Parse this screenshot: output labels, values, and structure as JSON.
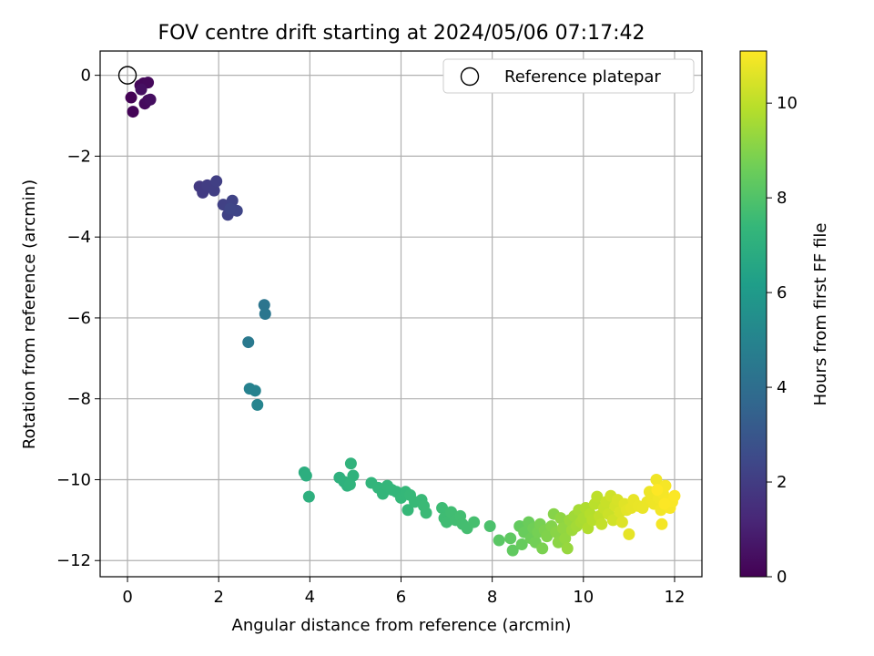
{
  "chart_data": {
    "type": "scatter",
    "title": "FOV centre drift starting at 2024/05/06 07:17:42",
    "xlabel": "Angular distance from reference (arcmin)",
    "ylabel": "Rotation from reference (arcmin)",
    "xlim": [
      -0.6,
      12.6
    ],
    "ylim": [
      -12.4,
      0.6
    ],
    "x_ticks": [
      0,
      2,
      4,
      6,
      8,
      10,
      12
    ],
    "y_ticks": [
      0,
      -2,
      -4,
      -6,
      -8,
      -10,
      -12
    ],
    "grid": true,
    "legend": {
      "position": "top-right",
      "entries": [
        "Reference platepar"
      ]
    },
    "reference_point": {
      "x": 0,
      "y": 0
    },
    "colorbar": {
      "label": "Hours from first FF file",
      "range": [
        0,
        11.1
      ],
      "ticks": [
        0,
        2,
        4,
        6,
        8,
        10
      ],
      "colormap": [
        "#440154",
        "#482878",
        "#3e4989",
        "#31688e",
        "#26828e",
        "#1f9e89",
        "#35b779",
        "#6ece58",
        "#b5de2b",
        "#fde725"
      ]
    },
    "points": [
      [
        0.08,
        -0.55,
        0.05
      ],
      [
        0.12,
        -0.9,
        0.1
      ],
      [
        0.28,
        -0.25,
        0.15
      ],
      [
        0.35,
        -0.2,
        0.2
      ],
      [
        0.45,
        -0.18,
        0.25
      ],
      [
        0.38,
        -0.7,
        0.3
      ],
      [
        0.45,
        -0.62,
        0.35
      ],
      [
        0.5,
        -0.6,
        0.4
      ],
      [
        0.3,
        -0.35,
        0.45
      ],
      [
        1.58,
        -2.75,
        1.9
      ],
      [
        1.65,
        -2.9,
        1.95
      ],
      [
        1.75,
        -2.72,
        2.0
      ],
      [
        1.9,
        -2.85,
        2.05
      ],
      [
        1.95,
        -2.62,
        2.1
      ],
      [
        2.1,
        -3.2,
        2.15
      ],
      [
        2.2,
        -3.45,
        2.2
      ],
      [
        2.3,
        -3.1,
        2.25
      ],
      [
        2.4,
        -3.35,
        2.3
      ],
      [
        2.25,
        -3.3,
        2.35
      ],
      [
        3.0,
        -5.68,
        4.3
      ],
      [
        3.02,
        -5.9,
        4.35
      ],
      [
        2.65,
        -6.6,
        4.5
      ],
      [
        2.68,
        -7.75,
        4.9
      ],
      [
        2.8,
        -7.8,
        4.95
      ],
      [
        2.85,
        -8.15,
        5.0
      ],
      [
        3.88,
        -9.82,
        6.9
      ],
      [
        3.92,
        -9.9,
        6.95
      ],
      [
        3.98,
        -10.42,
        7.0
      ],
      [
        4.65,
        -9.95,
        7.05
      ],
      [
        4.75,
        -10.05,
        7.1
      ],
      [
        4.82,
        -10.15,
        7.1
      ],
      [
        4.9,
        -9.6,
        7.15
      ],
      [
        4.95,
        -9.9,
        7.15
      ],
      [
        4.88,
        -10.12,
        7.2
      ],
      [
        5.35,
        -10.08,
        7.25
      ],
      [
        5.5,
        -10.2,
        7.28
      ],
      [
        5.6,
        -10.35,
        7.3
      ],
      [
        5.7,
        -10.15,
        7.32
      ],
      [
        5.8,
        -10.25,
        7.34
      ],
      [
        5.9,
        -10.3,
        7.36
      ],
      [
        6.0,
        -10.45,
        7.38
      ],
      [
        6.1,
        -10.3,
        7.4
      ],
      [
        6.15,
        -10.75,
        7.42
      ],
      [
        6.2,
        -10.38,
        7.44
      ],
      [
        6.3,
        -10.55,
        7.46
      ],
      [
        6.45,
        -10.5,
        7.48
      ],
      [
        6.5,
        -10.65,
        7.5
      ],
      [
        6.55,
        -10.82,
        7.52
      ],
      [
        6.9,
        -10.7,
        7.6
      ],
      [
        6.95,
        -10.95,
        7.62
      ],
      [
        7.0,
        -11.05,
        7.64
      ],
      [
        7.1,
        -10.8,
        7.66
      ],
      [
        7.2,
        -11.0,
        7.68
      ],
      [
        7.3,
        -10.9,
        7.7
      ],
      [
        7.35,
        -11.1,
        7.72
      ],
      [
        7.45,
        -11.2,
        7.74
      ],
      [
        7.6,
        -11.05,
        7.76
      ],
      [
        7.95,
        -11.15,
        7.9
      ],
      [
        8.15,
        -11.5,
        8.2
      ],
      [
        8.4,
        -11.45,
        8.3
      ],
      [
        8.45,
        -11.75,
        8.35
      ],
      [
        8.6,
        -11.15,
        8.4
      ],
      [
        8.65,
        -11.6,
        8.45
      ],
      [
        8.7,
        -11.3,
        8.5
      ],
      [
        8.8,
        -11.05,
        8.55
      ],
      [
        8.85,
        -11.45,
        8.6
      ],
      [
        8.9,
        -11.2,
        8.65
      ],
      [
        8.95,
        -11.55,
        8.7
      ],
      [
        9.0,
        -11.3,
        8.75
      ],
      [
        9.05,
        -11.1,
        8.8
      ],
      [
        9.1,
        -11.7,
        8.85
      ],
      [
        9.15,
        -11.25,
        8.9
      ],
      [
        9.2,
        -11.4,
        8.95
      ],
      [
        9.3,
        -11.15,
        9.0
      ],
      [
        9.35,
        -10.85,
        9.05
      ],
      [
        9.4,
        -11.3,
        9.1
      ],
      [
        9.45,
        -11.55,
        9.15
      ],
      [
        9.5,
        -10.95,
        9.2
      ],
      [
        9.55,
        -11.2,
        9.25
      ],
      [
        9.6,
        -11.45,
        9.3
      ],
      [
        9.65,
        -11.7,
        9.35
      ],
      [
        9.7,
        -11.0,
        9.4
      ],
      [
        9.75,
        -11.25,
        9.45
      ],
      [
        9.8,
        -10.9,
        9.5
      ],
      [
        9.85,
        -11.15,
        9.55
      ],
      [
        9.9,
        -10.75,
        9.6
      ],
      [
        9.95,
        -11.05,
        9.65
      ],
      [
        10.0,
        -10.95,
        9.7
      ],
      [
        10.05,
        -10.7,
        9.75
      ],
      [
        10.1,
        -11.2,
        9.8
      ],
      [
        10.15,
        -10.85,
        9.85
      ],
      [
        10.2,
        -11.0,
        9.9
      ],
      [
        10.25,
        -10.6,
        9.95
      ],
      [
        10.3,
        -10.42,
        10.0
      ],
      [
        10.35,
        -10.9,
        10.05
      ],
      [
        10.4,
        -11.1,
        10.1
      ],
      [
        10.45,
        -10.7,
        10.15
      ],
      [
        10.5,
        -10.55,
        10.2
      ],
      [
        10.55,
        -10.85,
        10.25
      ],
      [
        10.6,
        -10.4,
        10.3
      ],
      [
        10.65,
        -11.0,
        10.35
      ],
      [
        10.7,
        -10.65,
        10.4
      ],
      [
        10.75,
        -10.5,
        10.45
      ],
      [
        10.8,
        -10.8,
        10.5
      ],
      [
        10.85,
        -11.05,
        10.55
      ],
      [
        10.9,
        -10.6,
        10.6
      ],
      [
        10.95,
        -10.75,
        10.65
      ],
      [
        11.0,
        -11.35,
        10.7
      ],
      [
        11.05,
        -10.7,
        10.72
      ],
      [
        11.1,
        -10.5,
        10.74
      ],
      [
        11.2,
        -10.65,
        10.76
      ],
      [
        11.3,
        -10.7,
        10.78
      ],
      [
        11.4,
        -10.55,
        10.8
      ],
      [
        11.45,
        -10.3,
        10.82
      ],
      [
        11.5,
        -10.5,
        10.84
      ],
      [
        11.55,
        -10.6,
        10.86
      ],
      [
        11.6,
        -10.0,
        10.88
      ],
      [
        11.65,
        -10.45,
        10.9
      ],
      [
        11.7,
        -10.75,
        10.92
      ],
      [
        11.72,
        -11.1,
        10.94
      ],
      [
        11.75,
        -10.35,
        10.96
      ],
      [
        11.8,
        -10.15,
        10.98
      ],
      [
        11.85,
        -10.5,
        11.0
      ],
      [
        11.9,
        -10.7,
        11.02
      ],
      [
        11.95,
        -10.55,
        11.04
      ],
      [
        12.0,
        -10.4,
        11.06
      ],
      [
        11.78,
        -10.6,
        11.08
      ],
      [
        11.62,
        -10.25,
        11.1
      ]
    ]
  }
}
